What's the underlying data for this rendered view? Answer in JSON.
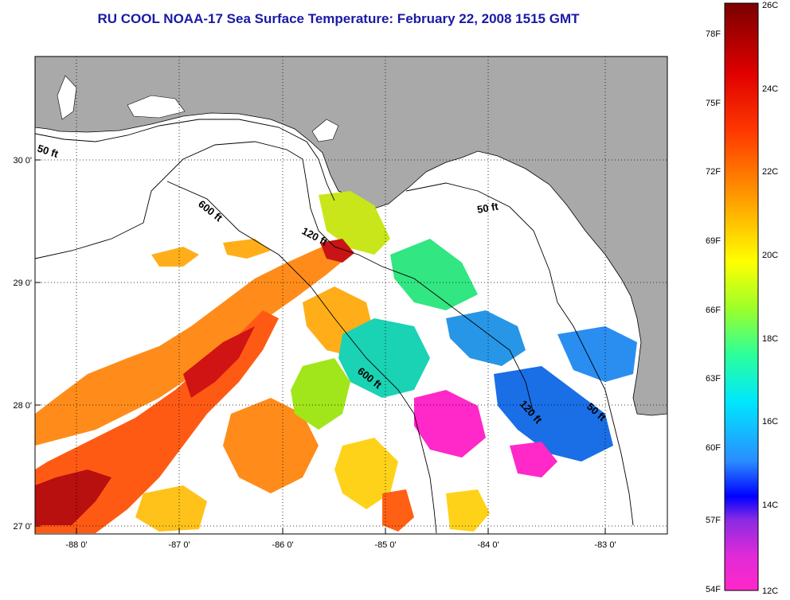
{
  "title": "RU COOL  NOAA-17  Sea Surface Temperature:  February 22, 2008 1515 GMT",
  "latitude_labels": [
    "30 0'",
    "29 0'",
    "28 0'",
    "27 0'"
  ],
  "longitude_labels": [
    "-88 0'",
    "-87 0'",
    "-86 0'",
    "-85 0'",
    "-84 0'",
    "-83 0'"
  ],
  "contour_labels": [
    "50 ft",
    "600 ft",
    "120 ft",
    "50 ft",
    "600 ft",
    "120 ft",
    "50 ft"
  ],
  "colorbar": {
    "fahrenheit_labels": [
      "78F",
      "75F",
      "72F",
      "69F",
      "66F",
      "63F",
      "60F",
      "57F",
      "54F"
    ],
    "celsius_labels": [
      "26C",
      "24C",
      "22C",
      "20C",
      "18C",
      "16C",
      "14C",
      "12C"
    ]
  },
  "colors": {
    "land": "#a9a9a9",
    "title": "#1a1aa6",
    "no_data": "#ffffff"
  }
}
